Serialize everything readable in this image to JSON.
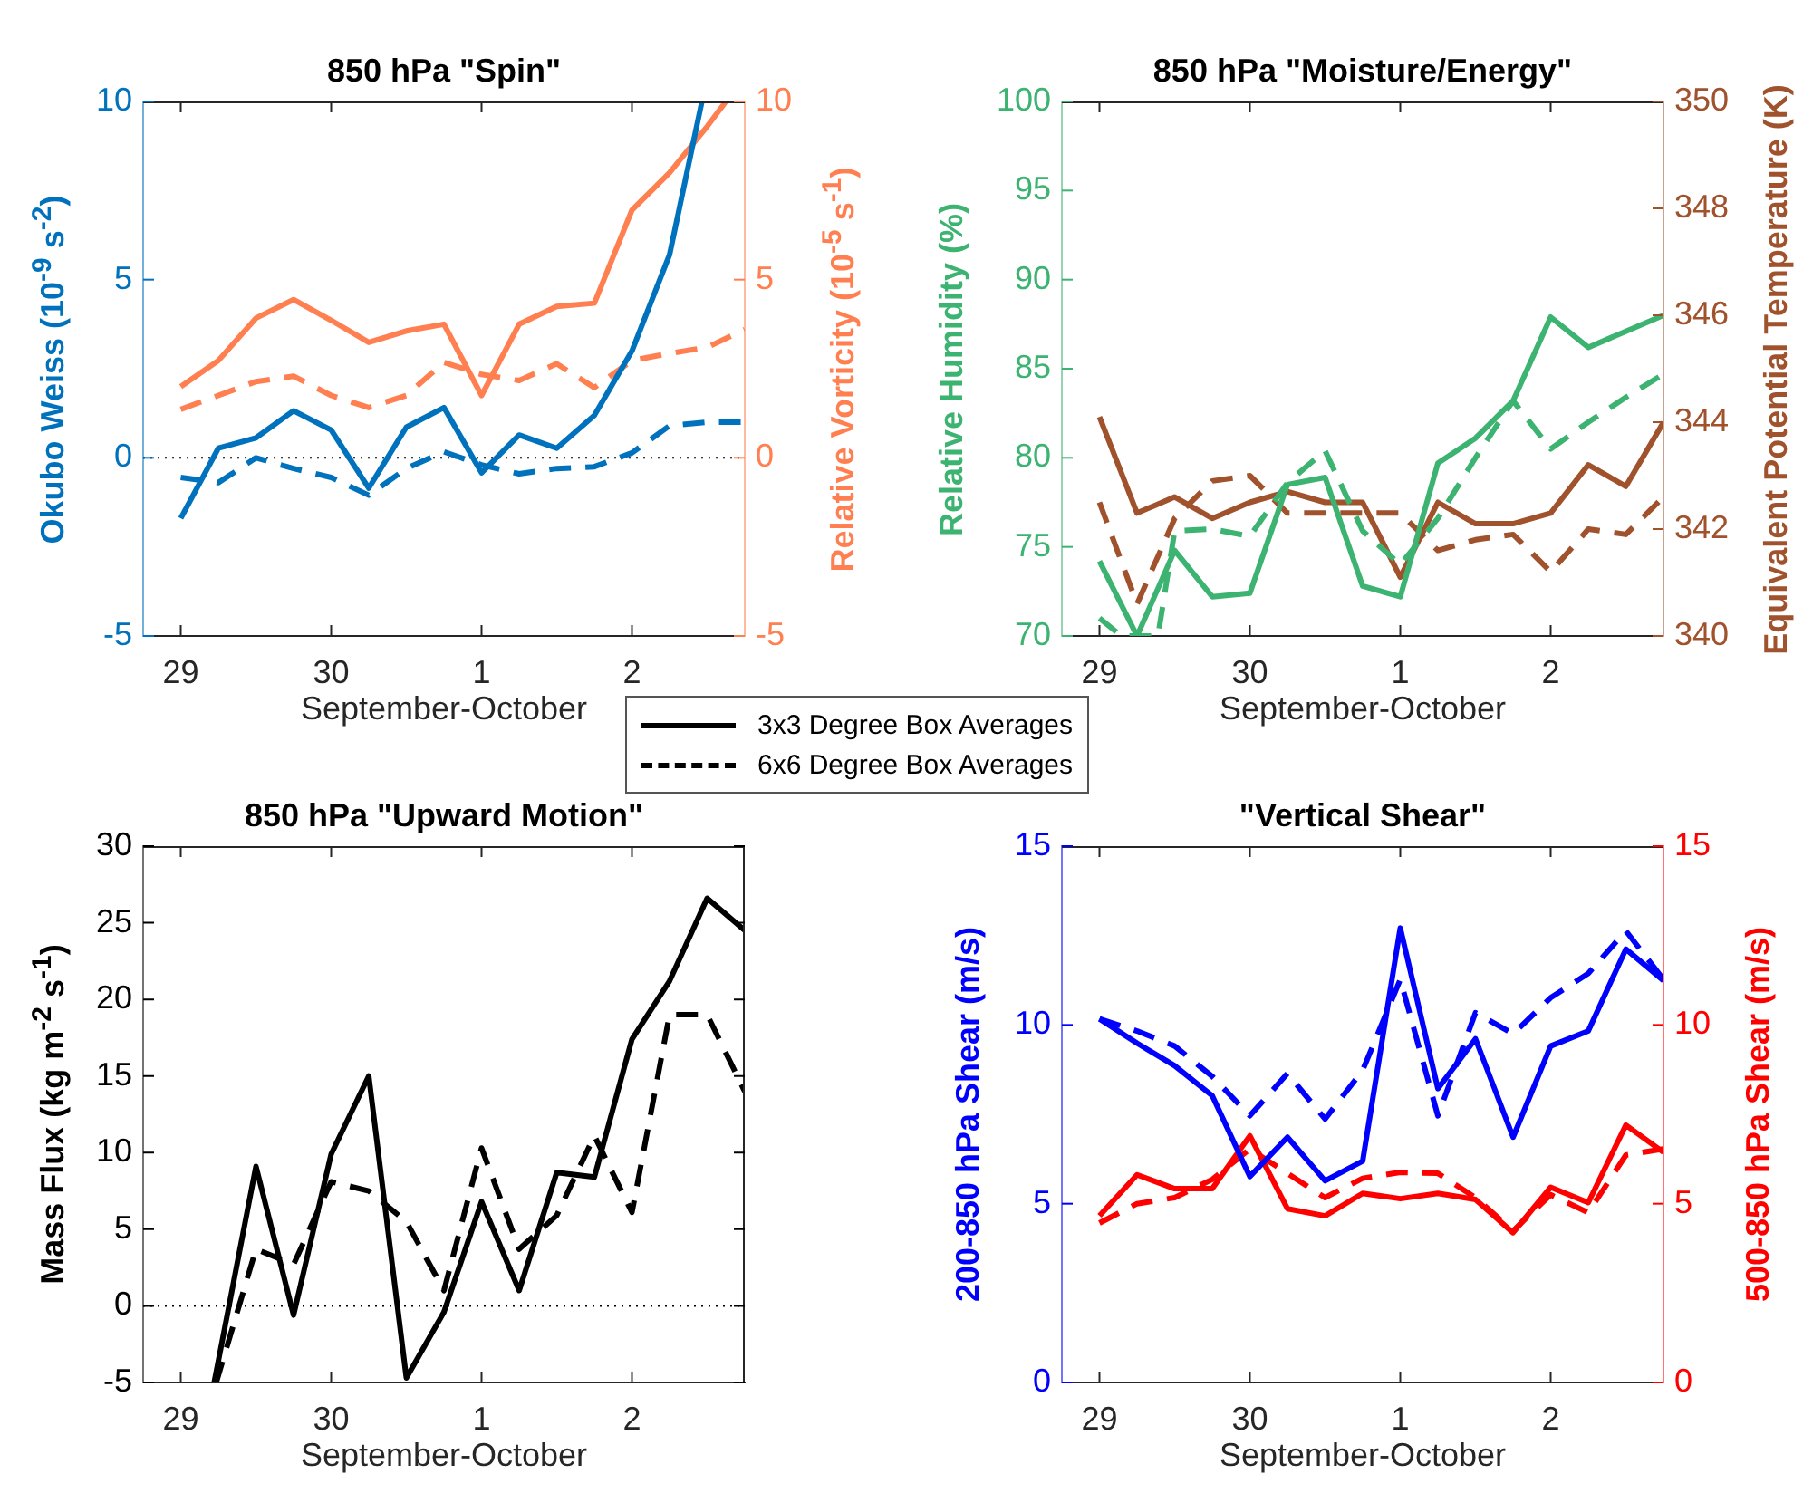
{
  "chart_data": [
    {
      "type": "line",
      "title": "850 hPa \"Spin\"",
      "xlabel": "September-October",
      "ylabel": "Okubo Weiss (10$^{-9}$ s$^{-2}$)",
      "y2label": "Relative Vorticity (10$^{-5}$ s$^{-1}$)",
      "x": [
        "--09-29T00:00",
        "--09-29T06:00",
        "--09-29T12:00",
        "--09-29T18:00",
        "--09-30T00:00",
        "--09-30T06:00",
        "--09-30T12:00",
        "--09-30T18:00",
        "--10-01T00:00",
        "--10-01T06:00",
        "--10-01T12:00",
        "--10-01T18:00",
        "--10-02T00:00",
        "--10-02T06:00",
        "--10-02T12:00",
        "--10-02T18:00"
      ],
      "xlim": [
        "--09-28T18:00",
        "--10-02T18:00"
      ],
      "xticks": [
        {
          "value": "--09-29",
          "label": "29"
        },
        {
          "value": "--09-30",
          "label": "30"
        },
        {
          "value": "--10-01",
          "label": "1"
        },
        {
          "value": "--10-02",
          "label": "2"
        }
      ],
      "ylim": [
        -5,
        10
      ],
      "yticks": [
        -5,
        0,
        5,
        10
      ],
      "y2lim": [
        -5,
        10
      ],
      "y2ticks": [
        -5,
        0,
        5,
        10
      ],
      "series": [
        {
          "color": "#0072bd",
          "line_style": "solid",
          "x": [
            "--09-29T00:00",
            "--09-29T06:00",
            "--09-29T12:00",
            "--09-29T18:00",
            "--09-30T00:00",
            "--09-30T06:00",
            "--09-30T12:00",
            "--09-30T18:00",
            "--10-01T00:00",
            "--10-01T06:00",
            "--10-01T12:00",
            "--10-01T18:00",
            "--10-02T00:00",
            "--10-02T06:00",
            "--10-02T11:10"
          ],
          "values": [
            -1.7,
            0.27,
            0.56,
            1.32,
            0.78,
            -0.85,
            0.86,
            1.41,
            -0.42,
            0.64,
            0.27,
            1.19,
            3.0,
            5.7,
            10
          ]
        },
        {
          "color": "#0072bd",
          "line_style": "dashed",
          "values": [
            -0.55,
            -0.7,
            0.0,
            -0.3,
            -0.55,
            -1.05,
            -0.3,
            0.17,
            -0.2,
            -0.45,
            -0.3,
            -0.25,
            0.14,
            0.9,
            1.0,
            1.0
          ]
        },
        {
          "color": "#ff7f50",
          "line_style": "solid",
          "axis": "y2",
          "x": [
            "--09-29T00:00",
            "--09-29T06:00",
            "--09-29T12:00",
            "--09-29T18:00",
            "--09-30T00:00",
            "--09-30T06:00",
            "--09-30T12:00",
            "--09-30T18:00",
            "--10-01T00:00",
            "--10-01T06:00",
            "--10-01T12:00",
            "--10-01T18:00",
            "--10-02T00:00",
            "--10-02T06:00",
            "--10-02T12:00",
            "--10-02T15:00"
          ],
          "values": [
            2.0,
            2.73,
            3.92,
            4.44,
            3.86,
            3.24,
            3.56,
            3.75,
            1.75,
            3.75,
            4.25,
            4.34,
            6.95,
            8.0,
            9.3,
            10
          ]
        },
        {
          "color": "#ff7f50",
          "line_style": "dashed",
          "axis": "y2",
          "values": [
            1.36,
            1.75,
            2.14,
            2.29,
            1.75,
            1.41,
            1.75,
            2.68,
            2.34,
            2.17,
            2.64,
            1.97,
            2.73,
            2.93,
            3.1,
            3.6
          ]
        }
      ],
      "ref_lines": [
        {
          "axis": "y",
          "value": 0,
          "color": "#000000",
          "line_style": "dotted"
        }
      ]
    },
    {
      "type": "line",
      "title": "850 hPa \"Moisture/Energy\"",
      "xlabel": "September-October",
      "ylabel": "Relative Humidity (%)",
      "y2label": "Equivalent Potential Temperature (K)",
      "x": [
        "--09-29T00:00",
        "--09-29T06:00",
        "--09-29T12:00",
        "--09-29T18:00",
        "--09-30T00:00",
        "--09-30T06:00",
        "--09-30T12:00",
        "--09-30T18:00",
        "--10-01T00:00",
        "--10-01T06:00",
        "--10-01T12:00",
        "--10-01T18:00",
        "--10-02T00:00",
        "--10-02T06:00",
        "--10-02T12:00",
        "--10-02T18:00"
      ],
      "xlim": [
        "--09-28T18:00",
        "--10-02T18:00"
      ],
      "xticks": [
        {
          "value": "--09-29",
          "label": "29"
        },
        {
          "value": "--09-30",
          "label": "30"
        },
        {
          "value": "--10-01",
          "label": "1"
        },
        {
          "value": "--10-02",
          "label": "2"
        }
      ],
      "ylim": [
        70,
        100
      ],
      "yticks": [
        70,
        75,
        80,
        85,
        90,
        95,
        100
      ],
      "y2lim": [
        340,
        350
      ],
      "y2ticks": [
        340,
        342,
        344,
        346,
        348,
        350
      ],
      "series": [
        {
          "color": "#3cb371",
          "line_style": "solid",
          "values": [
            74.2,
            70,
            74.8,
            72.2,
            72.4,
            78.5,
            78.9,
            72.8,
            72.2,
            79.7,
            81.1,
            83.2,
            87.9,
            86.2,
            87.1,
            88.0
          ]
        },
        {
          "color": "#3cb371",
          "line_style": "dashed",
          "x": [
            "--09-29T00:00",
            "--09-29T03:30",
            "--09-29T09:20",
            "--09-29T12:00",
            "--09-29T18:00",
            "--09-30T00:00",
            "--09-30T06:00",
            "--09-30T12:00",
            "--09-30T18:00",
            "--10-01T00:00",
            "--10-01T06:00",
            "--10-01T12:00",
            "--10-01T18:00",
            "--10-02T00:00",
            "--10-02T06:00",
            "--10-02T12:00",
            "--10-02T18:00"
          ],
          "values": [
            71.0,
            70,
            70,
            75.9,
            76.0,
            75.6,
            78.6,
            80.4,
            75.9,
            74.0,
            76.6,
            80.0,
            83.2,
            80.5,
            82.0,
            83.4,
            84.7
          ]
        },
        {
          "color": "#a0522d",
          "line_style": "solid",
          "axis": "y2",
          "values": [
            344.1,
            342.3,
            342.6,
            342.2,
            342.5,
            342.7,
            342.5,
            342.5,
            341.1,
            342.5,
            342.1,
            342.1,
            342.3,
            343.2,
            342.8,
            344.0
          ]
        },
        {
          "color": "#a0522d",
          "line_style": "dashed",
          "axis": "y2",
          "values": [
            342.5,
            340.6,
            342.2,
            342.9,
            343.0,
            342.3,
            342.3,
            342.3,
            342.3,
            341.6,
            341.8,
            341.9,
            341.2,
            342.0,
            341.9,
            342.6
          ]
        }
      ]
    },
    {
      "type": "line",
      "title": "850 hPa \"Upward Motion\"",
      "xlabel": "September-October",
      "ylabel": "Mass Flux (kg m$^{-2}$ s$^{-1}$)",
      "legend": "top right",
      "xlim": [
        "--09-28T18:00",
        "--10-02T18:00"
      ],
      "xticks": [
        {
          "value": "--09-29",
          "label": "29"
        },
        {
          "value": "--09-30",
          "label": "30"
        },
        {
          "value": "--10-01",
          "label": "1"
        },
        {
          "value": "--10-02",
          "label": "2"
        }
      ],
      "ylim": [
        -5,
        30
      ],
      "yticks": [
        -5,
        0,
        5,
        10,
        15,
        20,
        25,
        30
      ],
      "series": [
        {
          "name": "3x3 Degree Box Averages",
          "color": "#000000",
          "line_style": "solid",
          "x": [
            "--09-29T05:20",
            "--09-29T12:00",
            "--09-29T18:00",
            "--09-30T00:00",
            "--09-30T06:00",
            "--09-30T12:00",
            "--09-30T18:00",
            "--10-01T00:00",
            "--10-01T06:00",
            "--10-01T12:00",
            "--10-01T18:00",
            "--10-02T00:00",
            "--10-02T06:00",
            "--10-02T12:00",
            "--10-02T18:00"
          ],
          "values": [
            -5,
            9.1,
            -0.6,
            9.9,
            15.0,
            -4.7,
            -0.4,
            6.8,
            1.0,
            8.7,
            8.4,
            17.4,
            21.2,
            26.6,
            24.5
          ]
        },
        {
          "name": "6x6 Degree Box Averages",
          "color": "#000000",
          "line_style": "dashed",
          "x": [
            "--09-29T05:40",
            "--09-29T12:00",
            "--09-29T18:00",
            "--09-30T00:00",
            "--09-30T06:00",
            "--09-30T12:00",
            "--09-30T18:00",
            "--10-01T00:00",
            "--10-01T06:00",
            "--10-01T12:00",
            "--10-01T18:00",
            "--10-02T00:00",
            "--10-02T06:00",
            "--10-02T12:00",
            "--10-02T18:00"
          ],
          "values": [
            -5,
            3.7,
            2.7,
            8.1,
            7.5,
            5.5,
            1.0,
            10.3,
            3.7,
            5.9,
            11.1,
            6.1,
            19.0,
            19.0,
            14.0
          ]
        }
      ],
      "ref_lines": [
        {
          "axis": "y",
          "value": 0,
          "color": "#000000",
          "line_style": "dotted"
        }
      ]
    },
    {
      "type": "line",
      "title": "\"Vertical Shear\"",
      "xlabel": "September-October",
      "ylabel": "200-850 hPa Shear (m/s)",
      "y2label": "500-850 hPa Shear (m/s)",
      "x": [
        "--09-29T00:00",
        "--09-29T06:00",
        "--09-29T12:00",
        "--09-29T18:00",
        "--09-30T00:00",
        "--09-30T06:00",
        "--09-30T12:00",
        "--09-30T18:00",
        "--10-01T00:00",
        "--10-01T06:00",
        "--10-01T12:00",
        "--10-01T18:00",
        "--10-02T00:00",
        "--10-02T06:00",
        "--10-02T12:00",
        "--10-02T18:00"
      ],
      "xlim": [
        "--09-28T18:00",
        "--10-02T18:00"
      ],
      "xticks": [
        {
          "value": "--09-29",
          "label": "29"
        },
        {
          "value": "--09-30",
          "label": "30"
        },
        {
          "value": "--10-01",
          "label": "1"
        },
        {
          "value": "--10-02",
          "label": "2"
        }
      ],
      "ylim": [
        0,
        15
      ],
      "yticks": [
        0,
        5,
        10,
        15
      ],
      "y2lim": [
        0,
        15
      ],
      "y2ticks": [
        0,
        5,
        10,
        15
      ],
      "series": [
        {
          "color": "#0000ff",
          "line_style": "solid",
          "values": [
            10.17,
            9.49,
            8.86,
            8.02,
            5.76,
            6.86,
            5.64,
            6.19,
            12.71,
            8.22,
            9.61,
            6.86,
            9.41,
            9.83,
            12.12,
            11.24
          ]
        },
        {
          "color": "#0000ff",
          "line_style": "dashed",
          "values": [
            10.17,
            9.83,
            9.41,
            8.56,
            7.46,
            8.64,
            7.37,
            8.73,
            11.27,
            7.46,
            10.34,
            9.75,
            10.76,
            11.44,
            12.63,
            11.27
          ]
        },
        {
          "color": "#ff0000",
          "line_style": "solid",
          "axis": "y2",
          "values": [
            4.66,
            5.81,
            5.42,
            5.42,
            6.9,
            4.86,
            4.66,
            5.29,
            5.14,
            5.29,
            5.12,
            4.19,
            5.46,
            5.03,
            7.2,
            6.44
          ]
        },
        {
          "color": "#ff0000",
          "line_style": "dashed",
          "axis": "y2",
          "values": [
            4.46,
            5.0,
            5.17,
            5.68,
            6.53,
            5.85,
            5.17,
            5.71,
            5.88,
            5.85,
            5.17,
            4.24,
            5.25,
            4.75,
            6.36,
            6.53
          ]
        }
      ]
    }
  ]
}
